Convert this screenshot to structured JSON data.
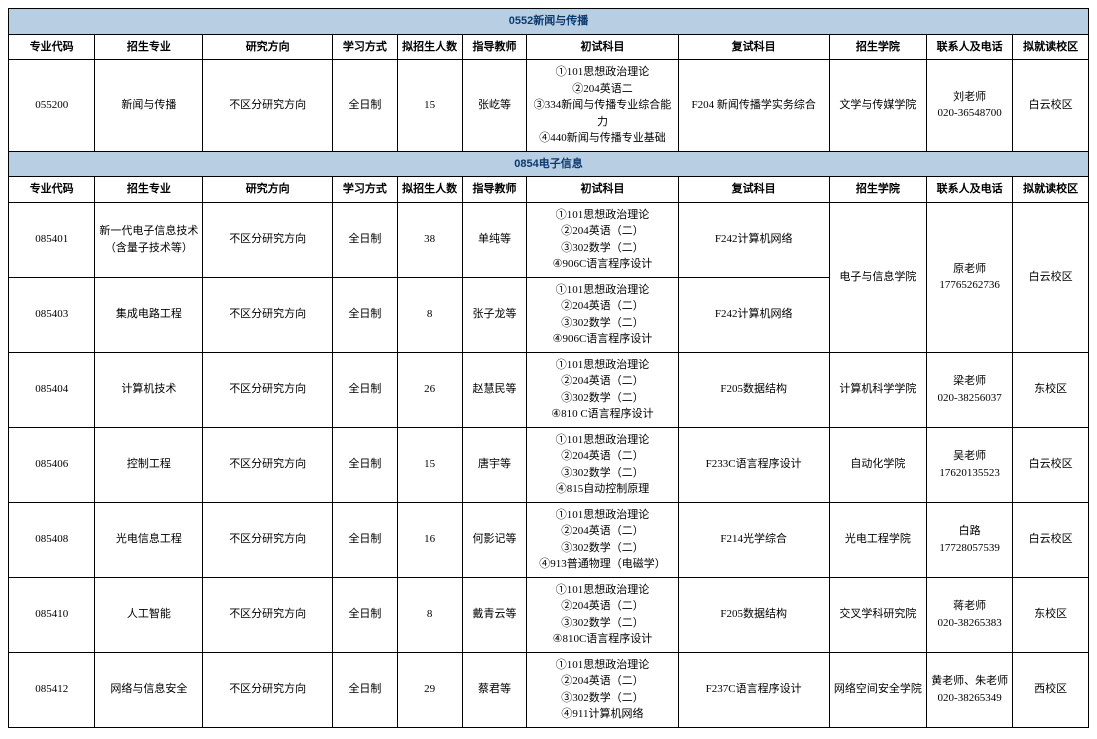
{
  "colors": {
    "header_bg": "#b8cee2",
    "header_text": "#0b3a6e",
    "border": "#000000",
    "bg": "#ffffff"
  },
  "font_sizes": {
    "section_header": 20,
    "th": 11,
    "td": 11
  },
  "headers": {
    "code": "专业代码",
    "major": "招生专业",
    "dir": "研究方向",
    "mode": "学习方式",
    "count": "拟招生人数",
    "advisor": "指导教师",
    "exam1": "初试科目",
    "exam2": "复试科目",
    "school": "招生学院",
    "contact": "联系人及电话",
    "campus": "拟就读校区"
  },
  "sections": [
    {
      "title": "0552新闻与传播",
      "rows": [
        {
          "code": "055200",
          "major": "新闻与传播",
          "dir": "不区分研究方向",
          "mode": "全日制",
          "count": "15",
          "advisor": "张屹等",
          "exam1": "①101思想政治理论\n②204英语二\n③334新闻与传播专业综合能力\n④440新闻与传播专业基础",
          "exam2": "F204 新闻传播学实务综合",
          "school": "文学与传媒学院",
          "contact": "刘老师\n020-36548700",
          "campus": "白云校区"
        }
      ]
    },
    {
      "title": "0854电子信息",
      "rows": [
        {
          "code": "085401",
          "major": "新一代电子信息技术（含量子技术等）",
          "dir": "不区分研究方向",
          "mode": "全日制",
          "count": "38",
          "advisor": "单纯等",
          "exam1": "①101思想政治理论\n②204英语（二）\n③302数学（二）\n④906C语言程序设计",
          "exam2": "F242计算机网络",
          "school_rowspan": 2,
          "school": "电子与信息学院",
          "contact_rowspan": 2,
          "contact": "原老师\n17765262736",
          "campus_rowspan": 2,
          "campus": "白云校区"
        },
        {
          "code": "085403",
          "major": "集成电路工程",
          "dir": "不区分研究方向",
          "mode": "全日制",
          "count": "8",
          "advisor": "张子龙等",
          "exam1": "①101思想政治理论\n②204英语（二）\n③302数学（二）\n④906C语言程序设计",
          "exam2": "F242计算机网络",
          "school_skip": true,
          "contact_skip": true,
          "campus_skip": true
        },
        {
          "code": "085404",
          "major": "计算机技术",
          "dir": "不区分研究方向",
          "mode": "全日制",
          "count": "26",
          "advisor": "赵慧民等",
          "exam1": "①101思想政治理论\n②204英语（二）\n③302数学（二）\n④810 C语言程序设计",
          "exam2": "F205数据结构",
          "school": "计算机科学学院",
          "contact": "梁老师\n020-38256037",
          "campus": "东校区"
        },
        {
          "code": "085406",
          "major": "控制工程",
          "dir": "不区分研究方向",
          "mode": "全日制",
          "count": "15",
          "advisor": "唐宇等",
          "exam1": "①101思想政治理论\n②204英语（二）\n③302数学（二）\n④815自动控制原理",
          "exam2": "F233C语言程序设计",
          "school": "自动化学院",
          "contact": "吴老师\n17620135523",
          "campus": "白云校区"
        },
        {
          "code": "085408",
          "major": "光电信息工程",
          "dir": "不区分研究方向",
          "mode": "全日制",
          "count": "16",
          "advisor": "何影记等",
          "exam1": "①101思想政治理论\n②204英语（二）\n③302数学（二）\n④913普通物理（电磁学）",
          "exam2": "F214光学综合",
          "school": "光电工程学院",
          "contact": "白路\n17728057539",
          "campus": "白云校区"
        },
        {
          "code": "085410",
          "major": "人工智能",
          "dir": "不区分研究方向",
          "mode": "全日制",
          "count": "8",
          "advisor": "戴青云等",
          "exam1": "①101思想政治理论\n②204英语（二）\n③302数学（二）\n④810C语言程序设计",
          "exam2": "F205数据结构",
          "school": "交叉学科研究院",
          "contact": "蒋老师\n020-38265383",
          "campus": "东校区"
        },
        {
          "code": "085412",
          "major": "网络与信息安全",
          "dir": "不区分研究方向",
          "mode": "全日制",
          "count": "29",
          "advisor": "蔡君等",
          "exam1": "①101思想政治理论\n②204英语（二）\n③302数学（二）\n④911计算机网络",
          "exam2": "F237C语言程序设计",
          "school": "网络空间安全学院",
          "contact": "黄老师、朱老师020-38265349",
          "campus": "西校区"
        }
      ]
    }
  ]
}
